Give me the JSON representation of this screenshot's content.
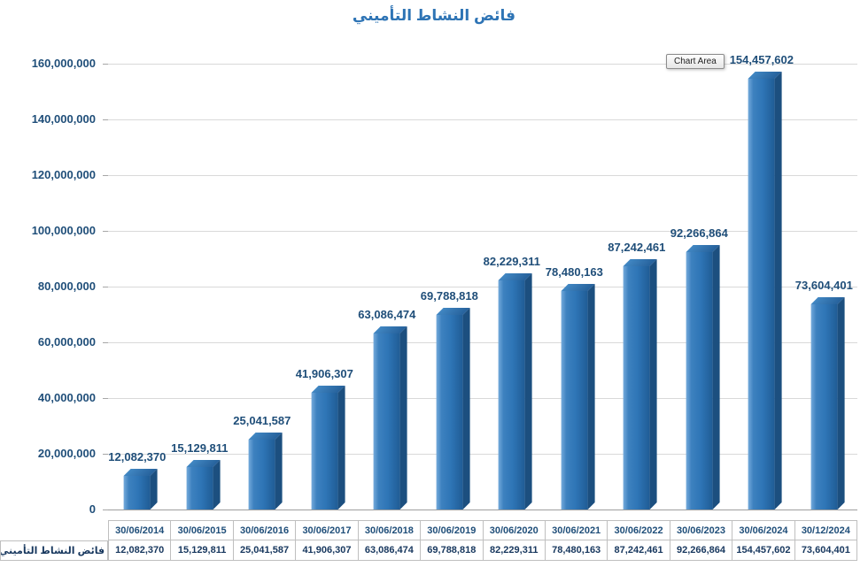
{
  "title": "فائض النشاط التأميني",
  "chart_area_tooltip": "Chart Area",
  "legend_label": "فائض النشاط التأميني",
  "colors": {
    "bar": "#2E75B6",
    "bar_side": "#1C4F7F",
    "title": "#2E74B5",
    "data_label": "#1F4E79",
    "grid": "#D9D9D9"
  },
  "chart_data": {
    "type": "bar",
    "title": "فائض النشاط التأميني",
    "categories": [
      "30/06/2014",
      "30/06/2015",
      "30/06/2016",
      "30/06/2017",
      "30/06/2018",
      "30/06/2019",
      "30/06/2020",
      "30/06/2021",
      "30/06/2022",
      "30/06/2023",
      "30/06/2024",
      "30/12/2024"
    ],
    "values": [
      12082370,
      15129811,
      25041587,
      41906307,
      63086474,
      69788818,
      82229311,
      78480163,
      87242461,
      92266864,
      154457602,
      73604401
    ],
    "value_labels": [
      "12,082,370",
      "15,129,811",
      "25,041,587",
      "41,906,307",
      "63,086,474",
      "69,788,818",
      "82,229,311",
      "78,480,163",
      "87,242,461",
      "92,266,864",
      "154,457,602",
      "73,604,401"
    ],
    "ylim": [
      0,
      160000000
    ],
    "ytick_step": 20000000,
    "ytick_labels": [
      "0",
      "20,000,000",
      "40,000,000",
      "60,000,000",
      "80,000,000",
      "100,000,000",
      "120,000,000",
      "140,000,000",
      "160,000,000"
    ],
    "grid": true,
    "legend": "فائض النشاط التأميني",
    "legend_position": "bottom-left-table"
  }
}
